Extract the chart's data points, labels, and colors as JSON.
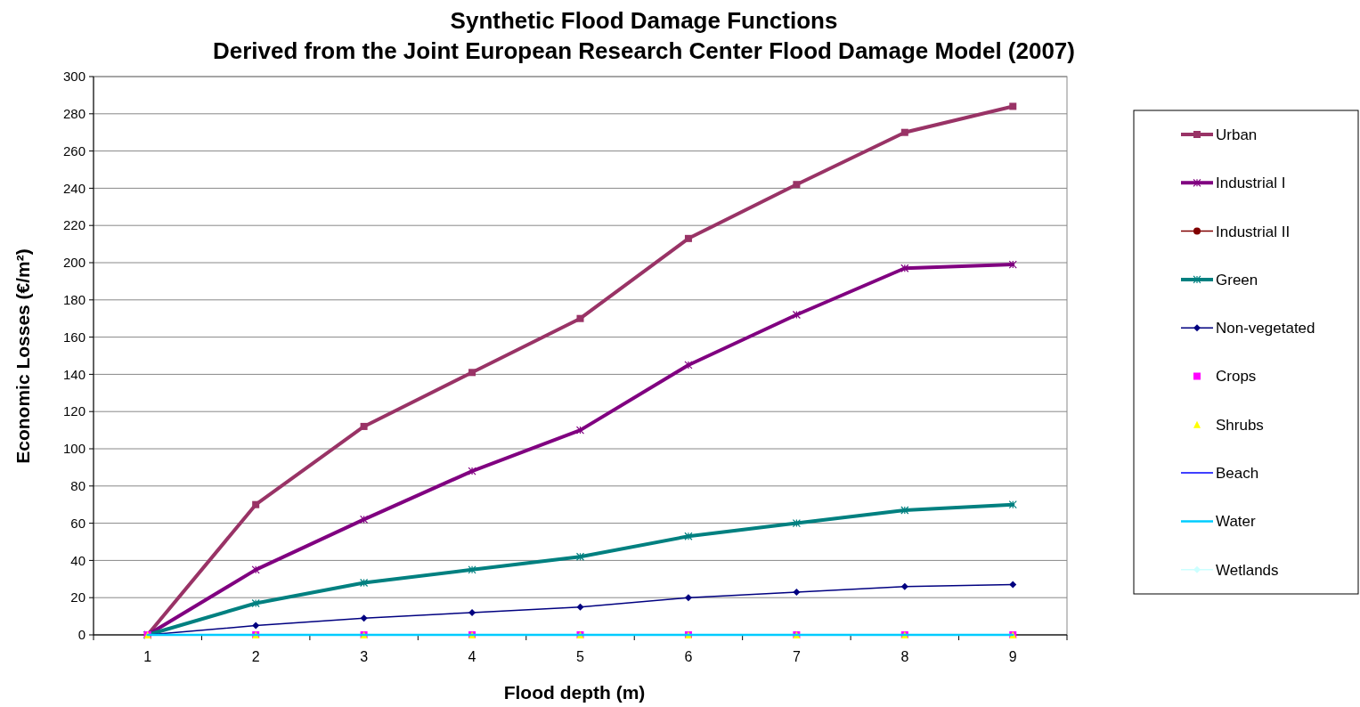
{
  "chart_data": {
    "type": "line",
    "title": "Synthetic Flood Damage Functions",
    "subtitle": "Derived from the Joint European Research Center Flood Damage Model  (2007)",
    "xlabel": "Flood depth (m)",
    "ylabel": "Economic Losses (€/m²)",
    "categories": [
      "1",
      "2",
      "3",
      "4",
      "5",
      "6",
      "7",
      "8",
      "9"
    ],
    "ylim": [
      0,
      300
    ],
    "yticks": [
      0,
      20,
      40,
      60,
      80,
      100,
      120,
      140,
      160,
      180,
      200,
      220,
      240,
      260,
      280,
      300
    ],
    "grid": "y",
    "legend": "right",
    "series": [
      {
        "name": "Urban",
        "color": "#993366",
        "marker": "square",
        "values": [
          0,
          70,
          112,
          141,
          170,
          213,
          242,
          270,
          284
        ]
      },
      {
        "name": "Industrial I",
        "color": "#800080",
        "marker": "cross",
        "values": [
          0,
          35,
          62,
          88,
          110,
          145,
          172,
          197,
          199
        ]
      },
      {
        "name": "Industrial II",
        "color": "#800000",
        "marker": "circle",
        "values": [
          null,
          null,
          null,
          null,
          null,
          null,
          null,
          null,
          null
        ]
      },
      {
        "name": "Green",
        "color": "#008080",
        "marker": "cross",
        "values": [
          0,
          17,
          28,
          35,
          42,
          53,
          60,
          67,
          70
        ]
      },
      {
        "name": "Non-vegetated",
        "color": "#000080",
        "marker": "diamond",
        "values": [
          0,
          5,
          9,
          12,
          15,
          20,
          23,
          26,
          27
        ]
      },
      {
        "name": "Crops",
        "type": "scatter",
        "color": "#ff00ff",
        "marker": "square",
        "values": [
          0,
          0,
          0,
          0,
          0,
          0,
          0,
          0,
          0
        ]
      },
      {
        "name": "Shrubs",
        "type": "scatter",
        "color": "#ffff00",
        "marker": "triangle",
        "values": [
          0,
          0,
          0,
          0,
          0,
          0,
          0,
          0,
          0
        ]
      },
      {
        "name": "Beach",
        "color": "#0000ff",
        "marker": "none",
        "values": [
          null,
          null,
          null,
          null,
          null,
          null,
          null,
          null,
          null
        ]
      },
      {
        "name": "Water",
        "color": "#00ccff",
        "marker": "none",
        "values": [
          0,
          0,
          0,
          0,
          0,
          0,
          0,
          0,
          0
        ]
      },
      {
        "name": "Wetlands",
        "color": "#ccffff",
        "marker": "diamond",
        "values": [
          null,
          null,
          null,
          null,
          null,
          null,
          null,
          null,
          null
        ]
      }
    ]
  }
}
